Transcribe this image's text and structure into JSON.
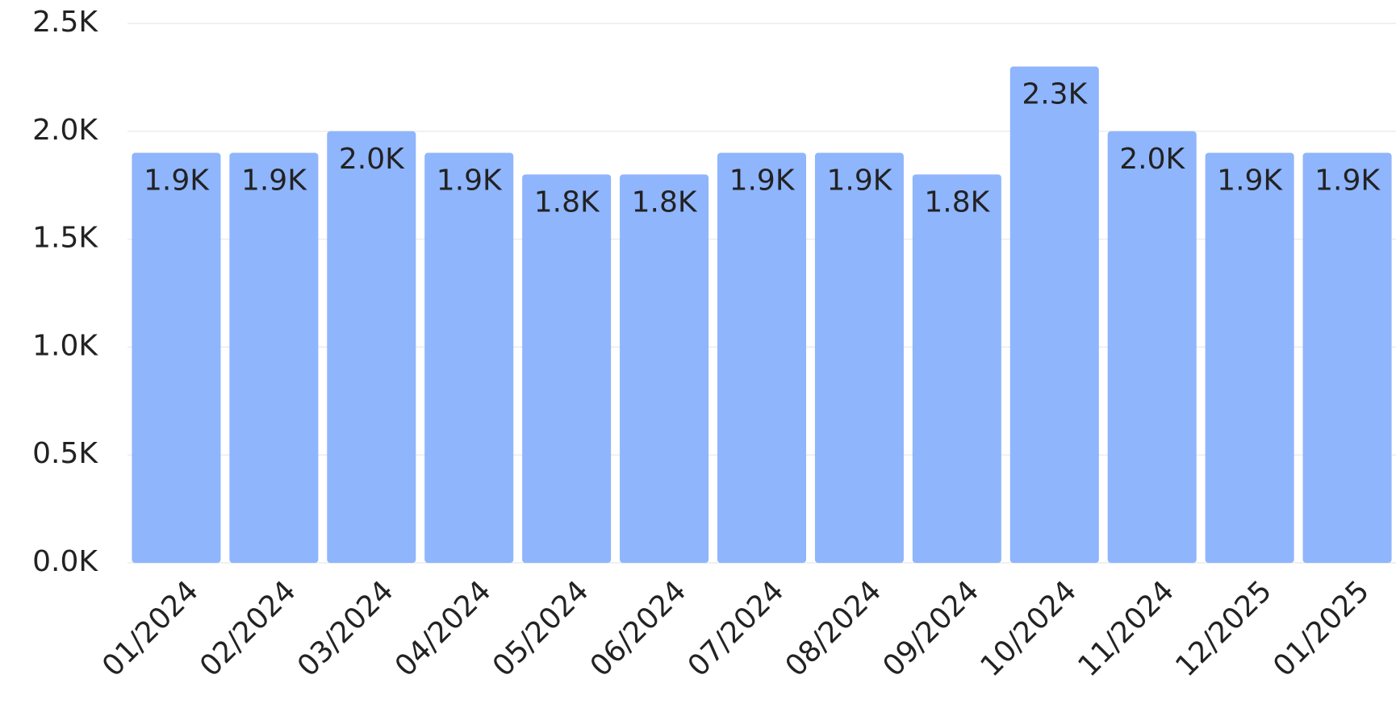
{
  "chart_data": {
    "type": "bar",
    "categories": [
      "01/2024",
      "02/2024",
      "03/2024",
      "04/2024",
      "05/2024",
      "06/2024",
      "07/2024",
      "08/2024",
      "09/2024",
      "10/2024",
      "11/2024",
      "12/2025",
      "01/2025"
    ],
    "values": [
      1900,
      1900,
      2000,
      1900,
      1800,
      1800,
      1900,
      1900,
      1800,
      2300,
      2000,
      1900,
      1900
    ],
    "value_labels": [
      "1.9K",
      "1.9K",
      "2.0K",
      "1.9K",
      "1.8K",
      "1.8K",
      "1.9K",
      "1.9K",
      "1.8K",
      "2.3K",
      "2.0K",
      "1.9K",
      "1.9K"
    ],
    "color": "#8fb5fd",
    "ylim": [
      0,
      2500
    ],
    "yticks": [
      {
        "value": 0,
        "label": "0.0K"
      },
      {
        "value": 500,
        "label": "0.5K"
      },
      {
        "value": 1000,
        "label": "1.0K"
      },
      {
        "value": 1500,
        "label": "1.5K"
      },
      {
        "value": 2000,
        "label": "2.0K"
      },
      {
        "value": 2500,
        "label": "2.5K"
      }
    ],
    "grid": true
  }
}
